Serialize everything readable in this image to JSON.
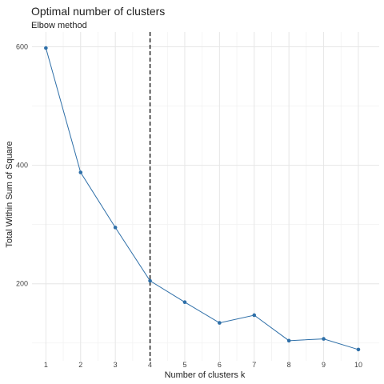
{
  "chart_data": {
    "type": "line",
    "title": "Optimal number of clusters",
    "subtitle": "Elbow method",
    "xlabel": "Number of clusters k",
    "ylabel": "Total Within Sum of Square",
    "x": [
      1,
      2,
      3,
      4,
      5,
      6,
      7,
      8,
      9,
      10
    ],
    "series": [
      {
        "values": [
          598,
          388,
          295,
          205,
          169,
          134,
          147,
          104,
          107,
          89
        ]
      }
    ],
    "x_ticks": [
      "1",
      "2",
      "3",
      "4",
      "5",
      "6",
      "7",
      "8",
      "9",
      "10"
    ],
    "y_ticks": [
      200,
      400,
      600
    ],
    "ylim": [
      70,
      625
    ],
    "xlim": [
      0.6,
      10.6
    ],
    "reference_line": {
      "x": 4,
      "style": "dashed"
    },
    "grid": true,
    "legend": "none",
    "colors": {
      "line": "#2E6FA8",
      "reference_line": "#000000",
      "grid": "#e6e6e6"
    }
  }
}
